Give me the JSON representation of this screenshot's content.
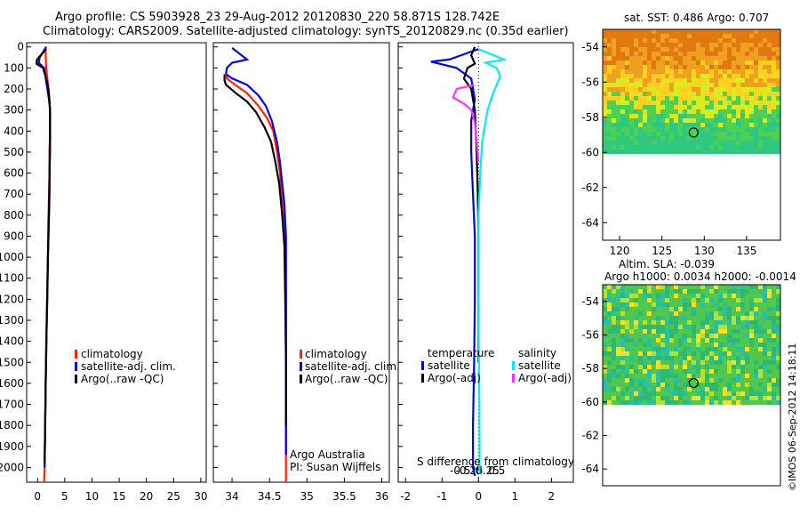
{
  "header": {
    "line1": "Argo profile: CS 5903928_23 29-Aug-2012 20120830_220 58.871S 128.742E",
    "line2": "Climatology: CARS2009. Satellite-adjusted climatology: synTS_20120829.nc (0.35d earlier)"
  },
  "colors": {
    "climatology": "#ff2200",
    "satellite_adj": "#0000ee",
    "argo": "#000000",
    "temperature_satellite": "#0000ee",
    "salinity_satellite": "#00eeee",
    "salinity_argo": "#ff33ff"
  },
  "depth_ticks": [
    "0",
    "100",
    "200",
    "300",
    "400",
    "500",
    "600",
    "700",
    "800",
    "900",
    "1000",
    "1100",
    "1200",
    "1300",
    "1400",
    "1500",
    "1600",
    "1700",
    "1800",
    "1900",
    "2000"
  ],
  "chart_data": [
    {
      "type": "line",
      "panel": "temperature",
      "xlim": [
        -2,
        31
      ],
      "ylim": [
        2070,
        -20
      ],
      "x_ticks": [
        "0",
        "5",
        "10",
        "15",
        "20",
        "25",
        "30"
      ],
      "x_tick_values": [
        0,
        5,
        10,
        15,
        20,
        25,
        30
      ],
      "y_scale": "depth, increasing downward",
      "legend": [
        "climatology",
        "satellite-adj. clim.",
        "Argo(..raw -QC)"
      ],
      "series": [
        {
          "name": "climatology",
          "color": "#ff2200",
          "x": [
            1.5,
            1.5,
            1.6,
            1.8,
            2.0,
            2.2,
            2.3,
            2.3,
            2.2,
            2.2,
            2.1,
            2.0,
            1.9,
            1.8,
            1.6,
            1.5,
            1.4,
            1.3,
            1.2
          ],
          "y": [
            0,
            50,
            100,
            150,
            200,
            250,
            300,
            400,
            500,
            600,
            700,
            800,
            1000,
            1200,
            1400,
            1600,
            1800,
            2000,
            2070
          ]
        },
        {
          "name": "satellite-adj. clim.",
          "color": "#0000ee",
          "x": [
            1.6,
            0.4,
            0.2,
            1.2,
            1.5,
            1.8,
            2.1,
            2.3,
            2.3,
            2.3,
            2.2,
            2.2,
            2.1,
            1.9,
            1.7,
            1.5,
            1.4,
            1.3
          ],
          "y": [
            0,
            50,
            75,
            100,
            150,
            200,
            250,
            300,
            400,
            500,
            600,
            700,
            800,
            1000,
            1300,
            1600,
            1800,
            2000
          ]
        },
        {
          "name": "Argo(..raw -QC)",
          "color": "#000000",
          "x": [
            1.6,
            -0.1,
            -0.2,
            1.0,
            1.6,
            2.0,
            2.3,
            2.3,
            2.2,
            2.1,
            1.9,
            1.7,
            1.5,
            1.4,
            1.3
          ],
          "y": [
            10,
            60,
            80,
            100,
            150,
            200,
            300,
            400,
            600,
            800,
            1000,
            1300,
            1600,
            1800,
            1980
          ]
        }
      ]
    },
    {
      "type": "line",
      "panel": "salinity",
      "xlim": [
        33.75,
        36.1
      ],
      "ylim": [
        2070,
        -20
      ],
      "x_ticks": [
        "34",
        "34.5",
        "35",
        "35.5",
        "36"
      ],
      "x_tick_values": [
        34,
        34.5,
        35,
        35.5,
        36
      ],
      "legend": [
        "climatology",
        "satellite-adj. clim.",
        "Argo(..raw -QC)"
      ],
      "annotations": [
        "Argo Australia",
        "PI: Susan Wijffels"
      ],
      "series": [
        {
          "name": "climatology",
          "color": "#ff2200",
          "x": [
            33.93,
            33.93,
            34.0,
            34.2,
            34.35,
            34.47,
            34.55,
            34.6,
            34.64,
            34.66,
            34.69,
            34.71,
            34.72,
            34.72,
            34.72,
            34.72
          ],
          "y": [
            130,
            150,
            170,
            220,
            280,
            340,
            400,
            500,
            600,
            700,
            800,
            1000,
            1200,
            1500,
            1800,
            2070
          ]
        },
        {
          "name": "satellite-adj. clim.",
          "color": "#0000ee",
          "x": [
            34.0,
            34.2,
            34.0,
            33.93,
            33.92,
            34.0,
            34.2,
            34.35,
            34.45,
            34.53,
            34.6,
            34.64,
            34.67,
            34.7,
            34.72,
            34.72,
            34.72,
            34.72,
            34.72
          ],
          "y": [
            5,
            60,
            75,
            100,
            130,
            150,
            180,
            230,
            280,
            350,
            450,
            550,
            650,
            750,
            900,
            1100,
            1400,
            1700,
            1940
          ]
        },
        {
          "name": "Argo(..raw -QC)",
          "color": "#000000",
          "x": [
            33.9,
            33.9,
            33.92,
            34.05,
            34.2,
            34.32,
            34.43,
            34.52,
            34.58,
            34.63,
            34.67,
            34.7,
            34.71,
            34.72,
            34.72
          ],
          "y": [
            130,
            160,
            180,
            220,
            260,
            310,
            380,
            450,
            550,
            650,
            800,
            950,
            1200,
            1500,
            1800
          ]
        }
      ]
    },
    {
      "type": "line",
      "panel": "difference",
      "xlim": [
        -2.2,
        2.6
      ],
      "ylim": [
        2070,
        -20
      ],
      "x_ticks": [
        "-2",
        "-1",
        "0",
        "1",
        "2"
      ],
      "x_tick_values": [
        -2,
        -1,
        0,
        1,
        2
      ],
      "x_ticks_secondary": [
        "-0.5",
        "-0.25",
        "0",
        "0.25",
        "0.5"
      ],
      "x_tick_values_secondary": [
        -0.5,
        -0.25,
        0,
        0.25,
        0.5
      ],
      "xlabel": "S difference from climatology",
      "legend": {
        "temperature": {
          "title": "temperature",
          "items": [
            "satellite",
            "Argo(-adj)"
          ]
        },
        "salinity": {
          "title": "salinity",
          "items": [
            "satellite",
            "Argo(-adj)"
          ]
        }
      },
      "series": [
        {
          "name": "temperature satellite",
          "color": "#0000ee",
          "x": [
            0.0,
            -0.8,
            -1.3,
            -0.6,
            -0.2,
            -0.1,
            -0.2,
            -0.2,
            -0.15,
            -0.1,
            -0.1,
            -0.12,
            -0.15,
            -0.15,
            -0.1
          ],
          "y": [
            10,
            60,
            70,
            100,
            150,
            250,
            350,
            500,
            700,
            900,
            1200,
            1500,
            1800,
            2000,
            2040
          ]
        },
        {
          "name": "temperature Argo(-adj)",
          "color": "#000000",
          "x": [
            -0.1,
            -0.2,
            -0.1,
            -0.3,
            -0.4,
            -0.2,
            -0.1,
            -0.05,
            -0.02,
            0.0,
            0.0,
            0.0
          ],
          "y": [
            0,
            40,
            80,
            100,
            150,
            200,
            300,
            500,
            700,
            900,
            1200,
            1500
          ]
        },
        {
          "name": "salinity satellite",
          "color": "#00eeee",
          "x": [
            0.0,
            0.7,
            0.2,
            0.5,
            0.6,
            0.4,
            0.25,
            0.1,
            0.05,
            0.0,
            0.0,
            0.0,
            0.02,
            0.03,
            0.03
          ],
          "y": [
            10,
            60,
            75,
            100,
            140,
            220,
            300,
            450,
            600,
            800,
            1000,
            1300,
            1600,
            1900,
            2030
          ]
        },
        {
          "name": "salinity Argo(-adj)",
          "color": "#ff33ff",
          "x": [
            -0.12,
            -0.6,
            -0.7,
            -0.4,
            -0.2,
            -0.1,
            -0.05,
            0.0
          ],
          "y": [
            180,
            200,
            240,
            270,
            300,
            360,
            450,
            550
          ]
        }
      ]
    },
    {
      "type": "heatmap",
      "panel": "map-sst",
      "title": "sat. SST: 0.486 Argo: 0.707",
      "xlim": [
        118,
        139
      ],
      "ylim": [
        -65,
        -53
      ],
      "x_ticks": [
        "120",
        "125",
        "130",
        "135"
      ],
      "x_tick_values": [
        120,
        125,
        130,
        135
      ],
      "y_ticks": [
        "-54",
        "-56",
        "-58",
        "-60",
        "-62",
        "-64"
      ],
      "y_tick_values": [
        -54,
        -56,
        -58,
        -60,
        -62,
        -64
      ],
      "data_extent_lat": [
        -60,
        -53
      ],
      "marker": {
        "lon": 128.742,
        "lat": -58.871
      }
    },
    {
      "type": "heatmap",
      "panel": "map-sla",
      "title": "Altim. SLA: -0.039",
      "subtitle": "Argo h1000: 0.0034 h2000: -0.0014",
      "xlim": [
        118,
        139
      ],
      "ylim": [
        -65,
        -53
      ],
      "y_ticks": [
        "-54",
        "-56",
        "-58",
        "-60",
        "-62",
        "-64"
      ],
      "y_tick_values": [
        -54,
        -56,
        -58,
        -60,
        -62,
        -64
      ],
      "data_extent_lat": [
        -60,
        -53
      ],
      "marker": {
        "lon": 128.742,
        "lat": -58.871
      }
    }
  ],
  "credit": "©IMOS 06-Sep-2012 14:18:11"
}
